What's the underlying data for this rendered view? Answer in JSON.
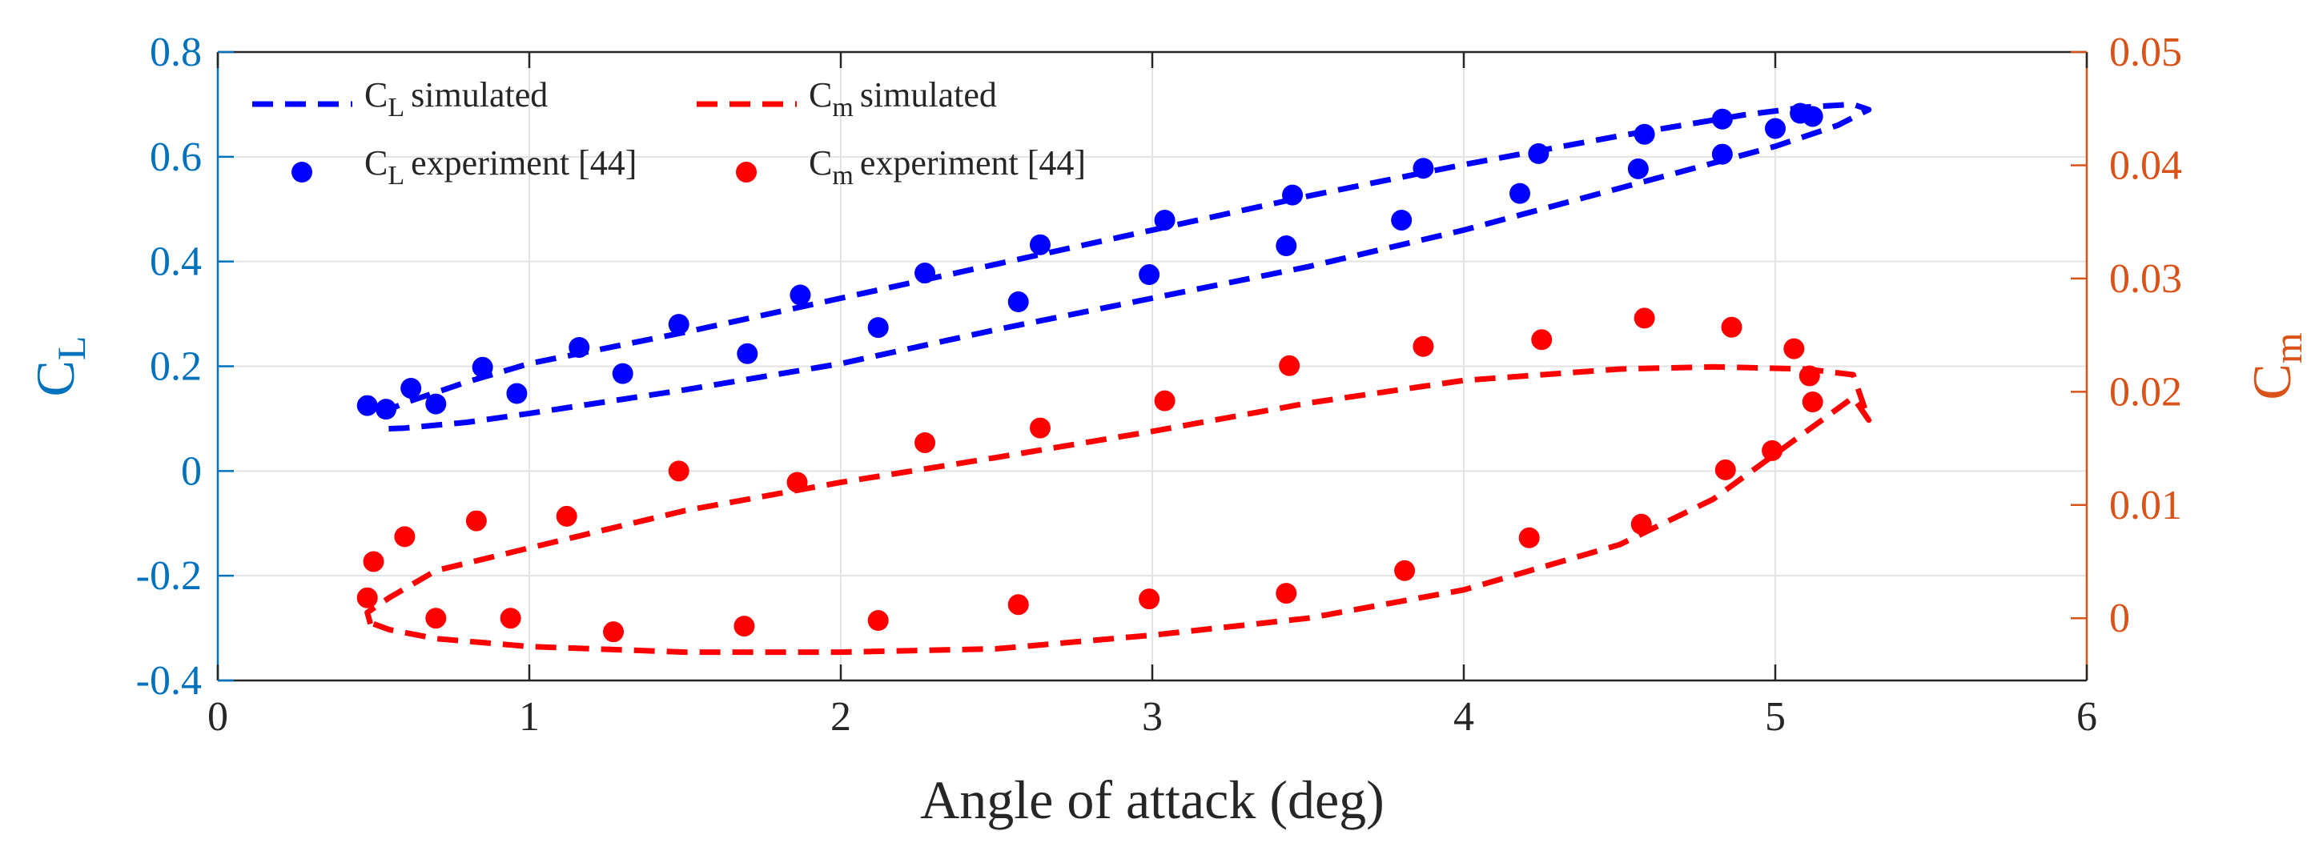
{
  "chart_data": {
    "type": "line",
    "xlabel": "Angle of attack (deg)",
    "xlim": [
      0,
      6
    ],
    "x_ticks": [
      "0",
      "1",
      "2",
      "3",
      "4",
      "5",
      "6"
    ],
    "grid": true,
    "legend_position": "top-left",
    "left_axis": {
      "label_main": "C",
      "label_sub": "L",
      "lim": [
        -0.4,
        0.8
      ],
      "ticks": [
        0.8,
        0.6,
        0.4,
        0.2,
        0,
        -0.2,
        -0.4
      ],
      "tick_labels": [
        "0.8",
        "0.6",
        "0.4",
        "0.2",
        "0",
        "-0.2",
        "-0.4"
      ],
      "color": "#0072BD"
    },
    "right_axis": {
      "label_main": "C",
      "label_sub": "m",
      "lim": [
        -0.0055,
        0.05
      ],
      "ticks": [
        0.05,
        0.04,
        0.03,
        0.02,
        0.01,
        0
      ],
      "tick_labels": [
        "0.05",
        "0.04",
        "0.03",
        "0.02",
        "0.01",
        "0"
      ],
      "color": "#D95319"
    },
    "series": [
      {
        "name": "C_L simulated",
        "legend_main": "C",
        "legend_sub": "L",
        "legend_rest": "simulated",
        "axis": "left",
        "style": "dashed",
        "color": "#0000FF",
        "x": [
          0.52,
          0.6,
          0.8,
          1.0,
          1.5,
          2.0,
          2.5,
          3.0,
          3.5,
          4.0,
          4.5,
          4.9,
          5.1,
          5.25,
          5.3,
          5.2,
          5.0,
          4.5,
          4.0,
          3.5,
          3.0,
          2.5,
          2.0,
          1.5,
          1.0,
          0.8,
          0.6,
          0.52
        ],
        "y": [
          0.11,
          0.13,
          0.17,
          0.205,
          0.265,
          0.33,
          0.395,
          0.46,
          0.525,
          0.585,
          0.64,
          0.68,
          0.695,
          0.7,
          0.69,
          0.66,
          0.62,
          0.54,
          0.46,
          0.39,
          0.33,
          0.27,
          0.205,
          0.155,
          0.11,
          0.093,
          0.082,
          0.08
        ]
      },
      {
        "name": "C_L experiment [44]",
        "legend_main": "C",
        "legend_sub": "L",
        "legend_rest": "experiment [44]",
        "axis": "left",
        "style": "markers",
        "color": "#0000FF",
        "x": [
          0.48,
          0.54,
          0.62,
          0.7,
          0.85,
          0.96,
          1.16,
          1.3,
          1.48,
          1.7,
          1.87,
          2.12,
          2.27,
          2.57,
          2.64,
          2.99,
          3.04,
          3.43,
          3.45,
          3.8,
          3.87,
          4.18,
          4.24,
          4.56,
          4.58,
          4.83,
          4.83,
          5.0,
          5.08,
          5.12
        ],
        "y": [
          0.125,
          0.118,
          0.158,
          0.128,
          0.198,
          0.148,
          0.236,
          0.186,
          0.28,
          0.224,
          0.336,
          0.274,
          0.378,
          0.323,
          0.432,
          0.375,
          0.479,
          0.43,
          0.527,
          0.479,
          0.578,
          0.53,
          0.606,
          0.577,
          0.643,
          0.605,
          0.672,
          0.654,
          0.683,
          0.677
        ]
      },
      {
        "name": "C_m simulated",
        "legend_main": "C",
        "legend_sub": "m",
        "legend_rest": "simulated",
        "axis": "right",
        "style": "dashed",
        "color": "#FF0000",
        "x": [
          0.5,
          0.55,
          0.7,
          1.0,
          1.5,
          2.0,
          2.5,
          3.0,
          3.5,
          4.0,
          4.5,
          4.8,
          5.0,
          5.15,
          5.25,
          5.3,
          5.25,
          5.1,
          4.8,
          4.5,
          4.0,
          3.5,
          3.0,
          2.5,
          2.0,
          1.5,
          1.0,
          0.7,
          0.55,
          0.48,
          0.49
        ],
        "y": [
          -0.0005,
          -0.001,
          -0.0018,
          -0.0025,
          -0.003,
          -0.003,
          -0.0027,
          -0.0015,
          0.0,
          0.0025,
          0.0065,
          0.0105,
          0.0145,
          0.0175,
          0.0195,
          0.0175,
          0.0215,
          0.022,
          0.0222,
          0.022,
          0.021,
          0.019,
          0.0165,
          0.0142,
          0.012,
          0.0095,
          0.0062,
          0.0042,
          0.0018,
          0.0005,
          -0.0005
        ]
      },
      {
        "name": "C_m experiment [44]",
        "legend_main": "C",
        "legend_sub": "m",
        "legend_rest": "experiment [44]",
        "axis": "right",
        "style": "markers",
        "color": "#FF0000",
        "x": [
          0.48,
          0.5,
          0.6,
          0.7,
          0.83,
          0.94,
          1.12,
          1.27,
          1.48,
          1.69,
          1.86,
          2.12,
          2.27,
          2.57,
          2.64,
          2.99,
          3.04,
          3.43,
          3.44,
          3.81,
          3.87,
          4.21,
          4.25,
          4.57,
          4.58,
          4.84,
          4.86,
          4.99,
          5.06,
          5.11,
          5.12
        ],
        "y": [
          0.0018,
          0.005,
          0.0072,
          0.0,
          0.0086,
          0.0,
          0.009,
          -0.0012,
          0.013,
          -0.0007,
          0.012,
          -0.0002,
          0.0155,
          0.0012,
          0.0168,
          0.0017,
          0.0192,
          0.0022,
          0.0223,
          0.0042,
          0.024,
          0.0071,
          0.0246,
          0.0083,
          0.0265,
          0.0131,
          0.0257,
          0.0148,
          0.0238,
          0.0214,
          0.0191
        ]
      }
    ]
  }
}
